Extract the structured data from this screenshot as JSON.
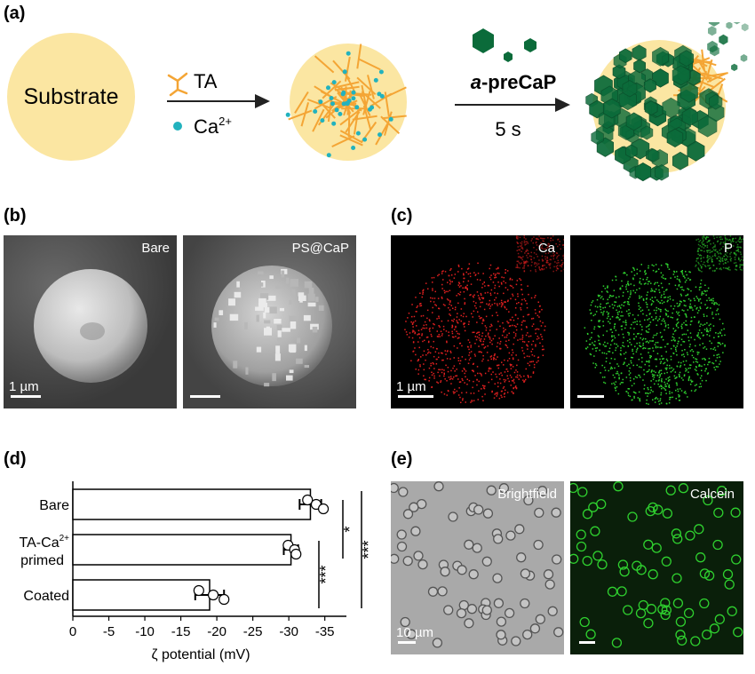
{
  "panels": {
    "a": {
      "label": "(a)",
      "substrate": "Substrate",
      "reagent_ta": "TA",
      "reagent_ca_base": "Ca",
      "reagent_ca_sup": "2+",
      "step2_reagent_prefix": "a",
      "step2_reagent_rest": "-preCaP",
      "step2_time": "5 s"
    },
    "b": {
      "label": "(b)",
      "left_tag": "Bare",
      "right_tag": "PS@CaP",
      "scale": "1 µm"
    },
    "c": {
      "label": "(c)",
      "left_tag": "Ca",
      "right_tag": "P",
      "scale": "1 µm"
    },
    "d": {
      "label": "(d)"
    },
    "e": {
      "label": "(e)",
      "left_tag": "Brightfield",
      "right_tag": "Calcein",
      "scale": "10 µm"
    }
  },
  "colors": {
    "substrate": "#fbe6a2",
    "ta_fiber": "#f4a535",
    "ca_ion": "#22b2be",
    "cap_crystal": "#0b6b3a",
    "calcein": "#2fd02f",
    "ca_map": "#e02020"
  },
  "chart_data": {
    "type": "bar",
    "orientation": "horizontal",
    "categories": [
      "Bare",
      "TA-Ca2+ primed",
      "Coated"
    ],
    "category_labels": [
      {
        "line1": "Bare",
        "line2": "",
        "sup": ""
      },
      {
        "line1": "TA-Ca",
        "sup": "2+",
        "line2": "primed"
      },
      {
        "line1": "Coated",
        "line2": "",
        "sup": ""
      }
    ],
    "values": [
      -33.0,
      -30.3,
      -19.0
    ],
    "errors": [
      1.5,
      1.0,
      2.0
    ],
    "points": [
      [
        -32.6,
        -33.8,
        -34.8
      ],
      [
        -29.9,
        -30.8,
        -31.0
      ],
      [
        -17.5,
        -19.5,
        -21.0
      ]
    ],
    "xlabel": "ζ potential (mV)",
    "xlim": [
      0,
      -38
    ],
    "xticks": [
      0,
      -5,
      -10,
      -15,
      -20,
      -25,
      -30,
      -35
    ],
    "xtick_labels": [
      "0",
      "-5",
      "-10",
      "-15",
      "-20",
      "-25",
      "-30",
      "-35"
    ],
    "significance": [
      {
        "between": [
          "Bare",
          "TA-Ca2+ primed"
        ],
        "mark": "*"
      },
      {
        "between": [
          "TA-Ca2+ primed",
          "Coated"
        ],
        "mark": "***"
      },
      {
        "between": [
          "Bare",
          "Coated"
        ],
        "mark": "***"
      }
    ]
  }
}
